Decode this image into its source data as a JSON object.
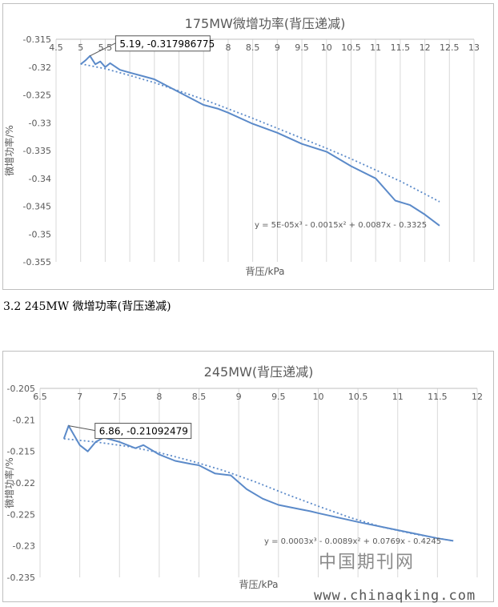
{
  "caption": "3.2 245MW 微增功率(背压递减)",
  "watermark": {
    "cn": "中国期刊网",
    "url": "www.chinaqking.com"
  },
  "colors": {
    "series": "#5b8ac9",
    "grid": "#d9d9d9",
    "text": "#595959",
    "title": "#595959"
  },
  "chart_data": [
    {
      "type": "line",
      "title": "175MW微增功率(背压递减)",
      "xlabel": "背压/kPa",
      "ylabel": "微增功率/%",
      "xlim": [
        4.5,
        13
      ],
      "ylim": [
        -0.355,
        -0.315
      ],
      "xticks": [
        4.5,
        5,
        5.5,
        6,
        6.5,
        7,
        7.5,
        8,
        8.5,
        9,
        9.5,
        10,
        10.5,
        11,
        11.5,
        12,
        12.5,
        13
      ],
      "yticks": [
        -0.315,
        -0.32,
        -0.325,
        -0.33,
        -0.335,
        -0.34,
        -0.345,
        -0.35,
        -0.355
      ],
      "grid": "vertical",
      "x_axis_position": "top",
      "series": [
        {
          "style": "solid",
          "x": [
            5.0,
            5.1,
            5.19,
            5.3,
            5.4,
            5.5,
            5.6,
            5.8,
            6.0,
            6.3,
            6.5,
            7.0,
            7.5,
            7.8,
            8.0,
            8.5,
            9.0,
            9.5,
            10.0,
            10.5,
            11.0,
            11.4,
            11.7,
            12.0,
            12.3
          ],
          "y": [
            -0.3195,
            -0.3188,
            -0.31799,
            -0.3195,
            -0.319,
            -0.32,
            -0.3193,
            -0.3205,
            -0.321,
            -0.3217,
            -0.3222,
            -0.3245,
            -0.3268,
            -0.3275,
            -0.3282,
            -0.3302,
            -0.3318,
            -0.3338,
            -0.3352,
            -0.3378,
            -0.34,
            -0.344,
            -0.3448,
            -0.3465,
            -0.3485
          ]
        },
        {
          "style": "dotted",
          "x": [
            5.0,
            5.5,
            6.0,
            6.5,
            7.0,
            7.5,
            8.0,
            8.5,
            9.0,
            9.5,
            10.0,
            10.5,
            11.0,
            11.5,
            12.0,
            12.3
          ],
          "y": [
            -0.3194,
            -0.3203,
            -0.3215,
            -0.3228,
            -0.3243,
            -0.3258,
            -0.3275,
            -0.3292,
            -0.331,
            -0.3328,
            -0.3346,
            -0.3365,
            -0.3385,
            -0.3405,
            -0.3428,
            -0.3442
          ]
        }
      ],
      "annotation": {
        "text": "5.19, -0.317986775",
        "x": 5.19,
        "y": -0.31799
      },
      "trendline_label": "y = 5E-05x³ - 0.0015x² + 0.0087x - 0.3325"
    },
    {
      "type": "line",
      "title": "245MW(背压递减)",
      "xlabel": "背压/kPa",
      "ylabel": "微增功率/%",
      "xlim": [
        6.5,
        12
      ],
      "ylim": [
        -0.235,
        -0.205
      ],
      "xticks": [
        6.5,
        7,
        7.5,
        8,
        8.5,
        9,
        9.5,
        10,
        10.5,
        11,
        11.5,
        12
      ],
      "yticks": [
        -0.205,
        -0.21,
        -0.215,
        -0.22,
        -0.225,
        -0.23,
        -0.235
      ],
      "grid": "vertical",
      "x_axis_position": "top",
      "series": [
        {
          "style": "solid",
          "x": [
            6.8,
            6.86,
            7.0,
            7.1,
            7.2,
            7.3,
            7.5,
            7.7,
            7.8,
            8.0,
            8.2,
            8.4,
            8.5,
            8.7,
            8.9,
            9.1,
            9.3,
            9.5,
            9.7,
            9.9,
            10.0,
            10.5,
            11.0,
            11.5,
            11.7
          ],
          "y": [
            -0.213,
            -0.21092,
            -0.214,
            -0.215,
            -0.2135,
            -0.2128,
            -0.2135,
            -0.2145,
            -0.214,
            -0.2155,
            -0.2165,
            -0.217,
            -0.2172,
            -0.2185,
            -0.2188,
            -0.221,
            -0.2225,
            -0.2235,
            -0.224,
            -0.2245,
            -0.2248,
            -0.2262,
            -0.2275,
            -0.2288,
            -0.2292
          ]
        },
        {
          "style": "dotted",
          "x": [
            6.8,
            7.2,
            7.6,
            8.0,
            8.4,
            8.8,
            9.2,
            9.6,
            10.0,
            10.4,
            10.8,
            11.2,
            11.6,
            11.7
          ],
          "y": [
            -0.213,
            -0.2135,
            -0.2142,
            -0.2152,
            -0.2165,
            -0.218,
            -0.2198,
            -0.2218,
            -0.2237,
            -0.2255,
            -0.227,
            -0.2281,
            -0.229,
            -0.2292
          ]
        }
      ],
      "annotation": {
        "text": "6.86, -0.21092479",
        "x": 6.86,
        "y": -0.21092
      },
      "trendline_label": "y = 0.0003x³ - 0.0089x² + 0.0769x - 0.4245"
    }
  ]
}
